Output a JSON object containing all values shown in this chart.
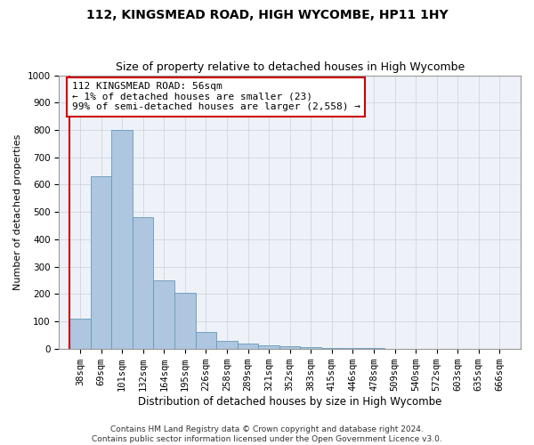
{
  "title": "112, KINGSMEAD ROAD, HIGH WYCOMBE, HP11 1HY",
  "subtitle": "Size of property relative to detached houses in High Wycombe",
  "xlabel": "Distribution of detached houses by size in High Wycombe",
  "ylabel": "Number of detached properties",
  "bin_labels": [
    "38sqm",
    "69sqm",
    "101sqm",
    "132sqm",
    "164sqm",
    "195sqm",
    "226sqm",
    "258sqm",
    "289sqm",
    "321sqm",
    "352sqm",
    "383sqm",
    "415sqm",
    "446sqm",
    "478sqm",
    "509sqm",
    "540sqm",
    "572sqm",
    "603sqm",
    "635sqm",
    "666sqm"
  ],
  "bar_values": [
    110,
    630,
    800,
    480,
    250,
    205,
    60,
    27,
    18,
    12,
    10,
    4,
    2,
    1,
    1,
    0,
    0,
    0,
    0,
    0,
    0
  ],
  "bar_color": "#aec6df",
  "bar_edge_color": "#6699bb",
  "annotation_text": "112 KINGSMEAD ROAD: 56sqm\n← 1% of detached houses are smaller (23)\n99% of semi-detached houses are larger (2,558) →",
  "annotation_box_color": "#ffffff",
  "annotation_box_edge_color": "#cc0000",
  "red_line_color": "#cc0000",
  "ylim": [
    0,
    1000
  ],
  "yticks": [
    0,
    100,
    200,
    300,
    400,
    500,
    600,
    700,
    800,
    900,
    1000
  ],
  "grid_color": "#c8d0dc",
  "bg_color": "#eef2f8",
  "footer_text": "Contains HM Land Registry data © Crown copyright and database right 2024.\nContains public sector information licensed under the Open Government Licence v3.0.",
  "title_fontsize": 10,
  "subtitle_fontsize": 9,
  "xlabel_fontsize": 8.5,
  "ylabel_fontsize": 8,
  "tick_fontsize": 7.5,
  "annotation_fontsize": 8,
  "footer_fontsize": 6.5
}
